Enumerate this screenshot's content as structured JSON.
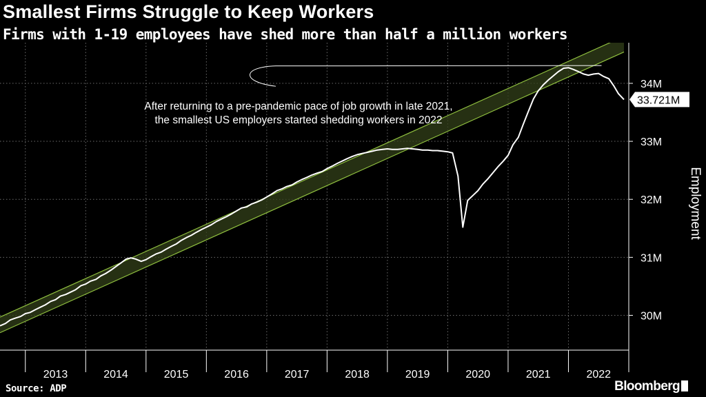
{
  "header": {
    "title": "Smallest Firms Struggle to Keep Workers",
    "subtitle": "Firms with 1-19 employees have shed more than half a million workers"
  },
  "footer": {
    "source": "Source: ADP",
    "brand": "Bloomberg"
  },
  "colors": {
    "background": "#000000",
    "line": "#ffffff",
    "channel_stroke": "#8fbf3f",
    "channel_fill": "#33401a",
    "grid": "#6e6e6e",
    "text": "#ffffff"
  },
  "chart_data": {
    "type": "line",
    "title": "Smallest Firms Struggle to Keep Workers",
    "subtitle": "Firms with 1-19 employees have shed more than half a million workers",
    "xlabel": "",
    "ylabel": "Employment",
    "ylim": [
      29.4,
      34.7
    ],
    "xlim": [
      2012.58,
      2023.0
    ],
    "x_tick_labels": [
      "2013",
      "2014",
      "2015",
      "2016",
      "2017",
      "2018",
      "2019",
      "2020",
      "2021",
      "2022"
    ],
    "y_ticks": [
      {
        "value": 30,
        "label": "30M"
      },
      {
        "value": 31,
        "label": "31M"
      },
      {
        "value": 32,
        "label": "32M"
      },
      {
        "value": 33,
        "label": "33M"
      },
      {
        "value": 34,
        "label": "34M"
      }
    ],
    "grid": true,
    "series": [
      {
        "name": "Employment, firms with 1-19 employees (millions)",
        "points": [
          [
            2012.58,
            29.82
          ],
          [
            2012.67,
            29.86
          ],
          [
            2012.75,
            29.92
          ],
          [
            2012.83,
            29.95
          ],
          [
            2012.92,
            29.98
          ],
          [
            2013.0,
            30.03
          ],
          [
            2013.08,
            30.05
          ],
          [
            2013.17,
            30.1
          ],
          [
            2013.25,
            30.14
          ],
          [
            2013.33,
            30.18
          ],
          [
            2013.42,
            30.24
          ],
          [
            2013.5,
            30.27
          ],
          [
            2013.58,
            30.33
          ],
          [
            2013.67,
            30.36
          ],
          [
            2013.75,
            30.4
          ],
          [
            2013.83,
            30.44
          ],
          [
            2013.92,
            30.51
          ],
          [
            2014.0,
            30.54
          ],
          [
            2014.08,
            30.59
          ],
          [
            2014.17,
            30.62
          ],
          [
            2014.25,
            30.68
          ],
          [
            2014.33,
            30.72
          ],
          [
            2014.42,
            30.78
          ],
          [
            2014.5,
            30.84
          ],
          [
            2014.58,
            30.9
          ],
          [
            2014.67,
            30.97
          ],
          [
            2014.75,
            30.99
          ],
          [
            2014.83,
            30.97
          ],
          [
            2014.92,
            30.93
          ],
          [
            2015.0,
            30.96
          ],
          [
            2015.08,
            31.01
          ],
          [
            2015.17,
            31.06
          ],
          [
            2015.25,
            31.09
          ],
          [
            2015.33,
            31.14
          ],
          [
            2015.42,
            31.19
          ],
          [
            2015.5,
            31.23
          ],
          [
            2015.58,
            31.29
          ],
          [
            2015.67,
            31.34
          ],
          [
            2015.75,
            31.38
          ],
          [
            2015.83,
            31.43
          ],
          [
            2015.92,
            31.48
          ],
          [
            2016.0,
            31.52
          ],
          [
            2016.08,
            31.56
          ],
          [
            2016.17,
            31.62
          ],
          [
            2016.25,
            31.66
          ],
          [
            2016.33,
            31.7
          ],
          [
            2016.42,
            31.75
          ],
          [
            2016.5,
            31.8
          ],
          [
            2016.58,
            31.85
          ],
          [
            2016.67,
            31.87
          ],
          [
            2016.75,
            31.92
          ],
          [
            2016.83,
            31.95
          ],
          [
            2016.92,
            31.99
          ],
          [
            2017.0,
            32.04
          ],
          [
            2017.08,
            32.09
          ],
          [
            2017.17,
            32.15
          ],
          [
            2017.25,
            32.18
          ],
          [
            2017.33,
            32.22
          ],
          [
            2017.42,
            32.25
          ],
          [
            2017.5,
            32.3
          ],
          [
            2017.58,
            32.34
          ],
          [
            2017.67,
            32.38
          ],
          [
            2017.75,
            32.42
          ],
          [
            2017.83,
            32.45
          ],
          [
            2017.92,
            32.48
          ],
          [
            2018.0,
            32.53
          ],
          [
            2018.08,
            32.57
          ],
          [
            2018.17,
            32.62
          ],
          [
            2018.25,
            32.66
          ],
          [
            2018.33,
            32.7
          ],
          [
            2018.42,
            32.74
          ],
          [
            2018.5,
            32.77
          ],
          [
            2018.58,
            32.79
          ],
          [
            2018.67,
            32.81
          ],
          [
            2018.75,
            32.83
          ],
          [
            2018.83,
            32.85
          ],
          [
            2018.92,
            32.86
          ],
          [
            2019.0,
            32.87
          ],
          [
            2019.08,
            32.86
          ],
          [
            2019.17,
            32.86
          ],
          [
            2019.25,
            32.87
          ],
          [
            2019.33,
            32.88
          ],
          [
            2019.42,
            32.87
          ],
          [
            2019.5,
            32.86
          ],
          [
            2019.58,
            32.85
          ],
          [
            2019.67,
            32.85
          ],
          [
            2019.75,
            32.84
          ],
          [
            2019.83,
            32.84
          ],
          [
            2019.92,
            32.83
          ],
          [
            2020.0,
            32.82
          ],
          [
            2020.08,
            32.8
          ],
          [
            2020.17,
            32.4
          ],
          [
            2020.25,
            31.52
          ],
          [
            2020.33,
            31.98
          ],
          [
            2020.42,
            32.07
          ],
          [
            2020.5,
            32.15
          ],
          [
            2020.58,
            32.26
          ],
          [
            2020.67,
            32.36
          ],
          [
            2020.75,
            32.46
          ],
          [
            2020.83,
            32.56
          ],
          [
            2020.92,
            32.66
          ],
          [
            2021.0,
            32.76
          ],
          [
            2021.08,
            32.94
          ],
          [
            2021.17,
            33.07
          ],
          [
            2021.25,
            33.29
          ],
          [
            2021.33,
            33.5
          ],
          [
            2021.42,
            33.73
          ],
          [
            2021.5,
            33.87
          ],
          [
            2021.58,
            33.97
          ],
          [
            2021.67,
            34.06
          ],
          [
            2021.75,
            34.13
          ],
          [
            2021.83,
            34.2
          ],
          [
            2021.92,
            34.26
          ],
          [
            2022.0,
            34.27
          ],
          [
            2022.08,
            34.24
          ],
          [
            2022.17,
            34.2
          ],
          [
            2022.25,
            34.16
          ],
          [
            2022.33,
            34.14
          ],
          [
            2022.42,
            34.16
          ],
          [
            2022.5,
            34.17
          ],
          [
            2022.58,
            34.12
          ],
          [
            2022.67,
            34.08
          ],
          [
            2022.75,
            33.96
          ],
          [
            2022.83,
            33.82
          ],
          [
            2022.92,
            33.721
          ]
        ]
      }
    ],
    "trend_channel": {
      "label": "pre-pandemic growth pace",
      "lower": [
        [
          2012.58,
          29.7
        ],
        [
          2022.92,
          34.54
        ]
      ],
      "upper": [
        [
          2012.58,
          29.97
        ],
        [
          2022.92,
          34.81
        ]
      ]
    },
    "annotations": [
      {
        "text_lines": [
          "After returning to a pre-pandemic pace of job growth in late 2021,",
          "the smallest US employers started shedding workers in 2022"
        ]
      }
    ],
    "last_value_label": "33.721M"
  }
}
